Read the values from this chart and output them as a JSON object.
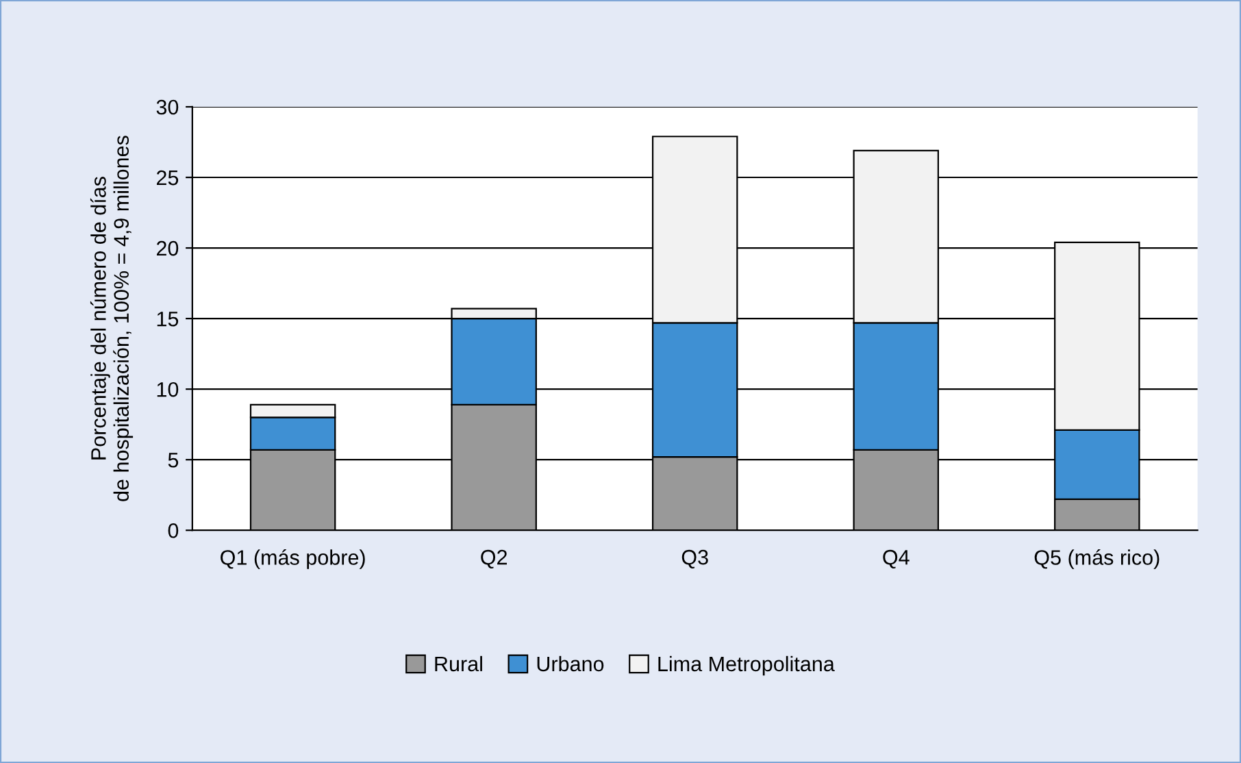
{
  "chart_data": {
    "type": "bar",
    "stacked": true,
    "ylabel": "Porcentaje del número de días\nde hospitalización, 100% = 4,9 millones",
    "categories": [
      "Q1 (más pobre)",
      "Q2",
      "Q3",
      "Q4",
      "Q5 (más rico)"
    ],
    "series": [
      {
        "name": "Rural",
        "color": "#999999",
        "values": [
          5.7,
          8.9,
          5.2,
          5.7,
          2.2
        ]
      },
      {
        "name": "Urbano",
        "color": "#3f90d3",
        "values": [
          2.3,
          6.1,
          9.5,
          9.0,
          4.9
        ]
      },
      {
        "name": "Lima Metropolitana",
        "color": "#f2f2f2",
        "values": [
          0.9,
          0.7,
          13.2,
          12.2,
          13.3
        ]
      }
    ],
    "ylim": [
      0,
      30
    ],
    "yticks": [
      0,
      5,
      10,
      15,
      20,
      25,
      30
    ],
    "grid": "y",
    "legend": "bottom"
  }
}
